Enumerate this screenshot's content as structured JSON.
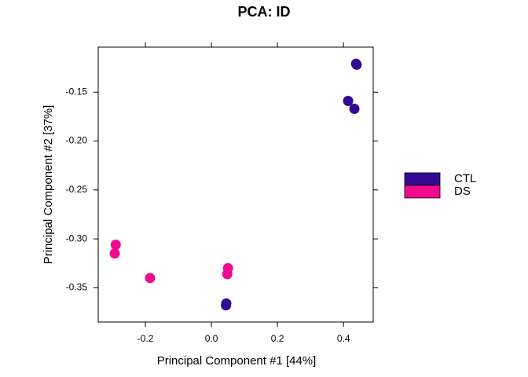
{
  "chart_data": {
    "type": "scatter",
    "title": "PCA: ID",
    "xlabel": "Principal Component #1 [44%]",
    "ylabel": "Principal Component #2 [37%]",
    "xlim": [
      -0.343,
      0.49
    ],
    "ylim": [
      -0.385,
      -0.104
    ],
    "xticks": [
      -0.2,
      {
        "value": 0,
        "label": "0.0"
      },
      0.2,
      0.4
    ],
    "yticks": [
      -0.15,
      {
        "value": -0.2,
        "label": "-0.20"
      },
      -0.25,
      {
        "value": -0.3,
        "label": "-0.30"
      },
      -0.35
    ],
    "series": [
      {
        "name": "CTL",
        "color": "#330a94",
        "x": [
          0.438,
          0.44,
          0.414,
          0.433,
          0.045,
          0.044
        ],
        "values": [
          -0.121,
          -0.122,
          -0.159,
          -0.167,
          -0.366,
          -0.368
        ]
      },
      {
        "name": "DS",
        "color": "#ef0a8e",
        "x": [
          -0.29,
          -0.293,
          -0.186,
          0.05,
          0.048
        ],
        "values": [
          -0.306,
          -0.315,
          -0.34,
          -0.33,
          -0.336
        ]
      }
    ]
  }
}
